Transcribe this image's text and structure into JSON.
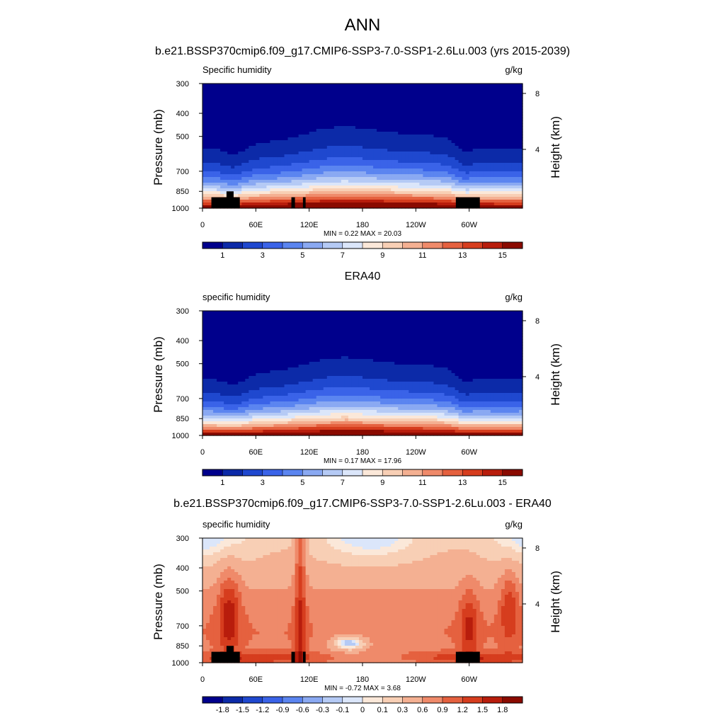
{
  "title": "ANN",
  "chart_data": [
    {
      "type": "heatmap",
      "title": "b.e21.BSSP370cmip6.f09_g17.CMIP6-SSP3-7.0-SSP1-2.6Lu.003 (yrs 2015-2039)",
      "left_label": "Specific humidity",
      "units": "g/kg",
      "ylabel": "Pressure (mb)",
      "y2label": "Height (km)",
      "yticks": [
        "300",
        "400",
        "500",
        "700",
        "850",
        "1000"
      ],
      "ytick_values": [
        300,
        400,
        500,
        700,
        850,
        1000
      ],
      "y2ticks": [
        "8",
        "4"
      ],
      "y2tick_values": [
        8,
        4
      ],
      "xticks": [
        "0",
        "60E",
        "120E",
        "180",
        "120W",
        "60W"
      ],
      "xtick_values": [
        0,
        60,
        120,
        180,
        240,
        300
      ],
      "xlim": [
        0,
        360
      ],
      "ylim": [
        1000,
        300
      ],
      "stats": "MIN =   0.22  MAX =  20.03",
      "min": 0.22,
      "max": 20.03,
      "colorbar": {
        "ticks": [
          "1",
          "3",
          "5",
          "7",
          "9",
          "11",
          "13",
          "15"
        ],
        "levels": [
          0,
          1,
          2,
          3,
          4,
          5,
          6,
          7,
          8,
          9,
          10,
          11,
          12,
          13,
          14,
          15,
          16
        ]
      }
    },
    {
      "type": "heatmap",
      "title": "ERA40",
      "left_label": "specific humidity",
      "units": "g/kg",
      "ylabel": "Pressure (mb)",
      "y2label": "Height (km)",
      "yticks": [
        "300",
        "400",
        "500",
        "700",
        "850",
        "1000"
      ],
      "ytick_values": [
        300,
        400,
        500,
        700,
        850,
        1000
      ],
      "y2ticks": [
        "8",
        "4"
      ],
      "y2tick_values": [
        8,
        4
      ],
      "xticks": [
        "0",
        "60E",
        "120E",
        "180",
        "120W",
        "60W"
      ],
      "xtick_values": [
        0,
        60,
        120,
        180,
        240,
        300
      ],
      "xlim": [
        0,
        360
      ],
      "ylim": [
        1000,
        300
      ],
      "stats": "MIN =   0.17  MAX =  17.96",
      "min": 0.17,
      "max": 17.96,
      "colorbar": {
        "ticks": [
          "1",
          "3",
          "5",
          "7",
          "9",
          "11",
          "13",
          "15"
        ],
        "levels": [
          0,
          1,
          2,
          3,
          4,
          5,
          6,
          7,
          8,
          9,
          10,
          11,
          12,
          13,
          14,
          15,
          16
        ]
      }
    },
    {
      "type": "heatmap",
      "title": "b.e21.BSSP370cmip6.f09_g17.CMIP6-SSP3-7.0-SSP1-2.6Lu.003 - ERA40",
      "left_label": "specific humidity",
      "units": "g/kg",
      "ylabel": "Pressure (mb)",
      "y2label": "Height (km)",
      "yticks": [
        "300",
        "400",
        "500",
        "700",
        "850",
        "1000"
      ],
      "ytick_values": [
        300,
        400,
        500,
        700,
        850,
        1000
      ],
      "y2ticks": [
        "8",
        "4"
      ],
      "y2tick_values": [
        8,
        4
      ],
      "xticks": [
        "0",
        "60E",
        "120E",
        "180",
        "120W",
        "60W"
      ],
      "xtick_values": [
        0,
        60,
        120,
        180,
        240,
        300
      ],
      "xlim": [
        0,
        360
      ],
      "ylim": [
        1000,
        300
      ],
      "stats": "MIN =  -0.72  MAX =   3.68",
      "min": -0.72,
      "max": 3.68,
      "colorbar": {
        "ticks": [
          "-1.8",
          "-1.5",
          "-1.2",
          "-0.9",
          "-0.6",
          "-0.3",
          "-0.1",
          "0",
          "0.1",
          "0.3",
          "0.6",
          "0.9",
          "1.2",
          "1.5",
          "1.8"
        ],
        "levels": [
          -2.1,
          -1.8,
          -1.5,
          -1.2,
          -0.9,
          -0.6,
          -0.3,
          -0.1,
          0,
          0.1,
          0.3,
          0.6,
          0.9,
          1.2,
          1.5,
          1.8,
          2.1
        ]
      }
    }
  ],
  "palette": [
    "#00008c",
    "#0c2aa8",
    "#1f48cf",
    "#3a63e8",
    "#5b85f0",
    "#8aa9f2",
    "#b5caf5",
    "#dbe6fa",
    "#fbe8d9",
    "#f8cfb5",
    "#f4b092",
    "#ef8a6a",
    "#e5613f",
    "#d63d1e",
    "#b81d0c",
    "#8a0a00"
  ],
  "land_color": "#000000"
}
